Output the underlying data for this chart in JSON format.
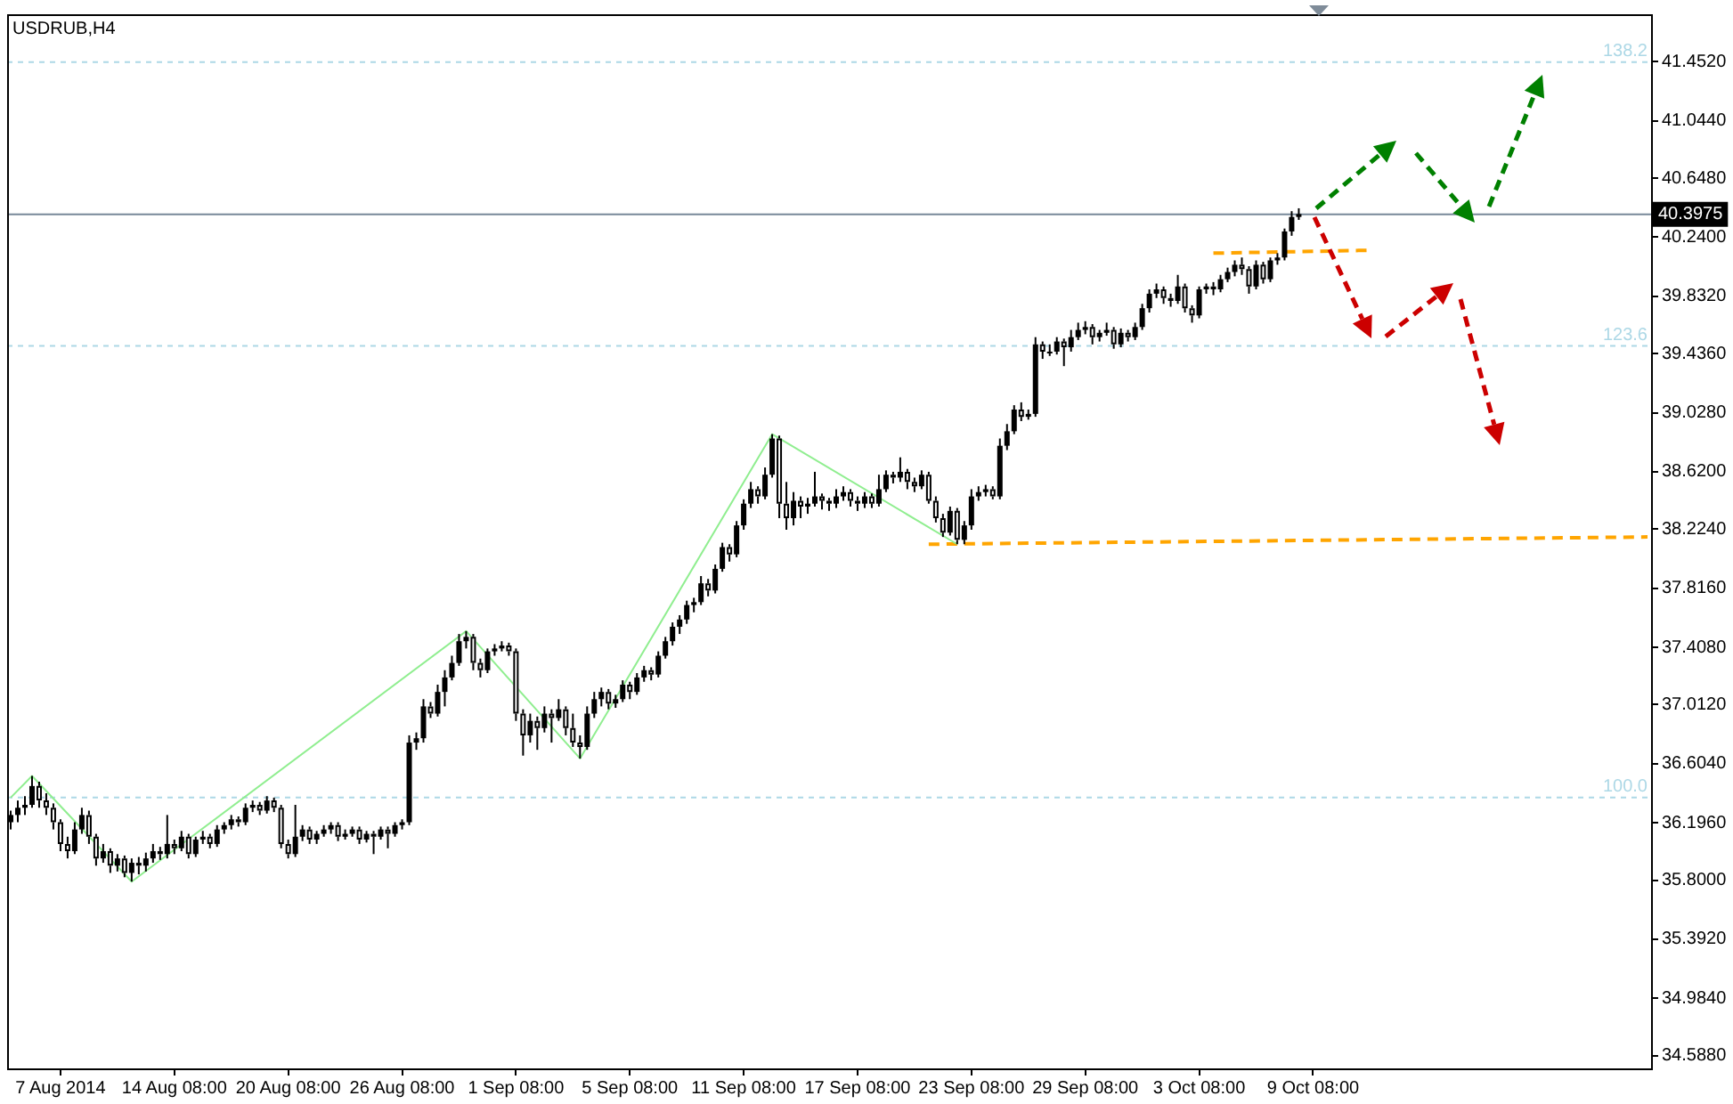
{
  "chart_data": {
    "type": "candlestick",
    "title": "USDRUB,H4",
    "color": "#000000",
    "categories": [
      null,
      null,
      null,
      null,
      null,
      null,
      null,
      "7 Aug 2014",
      null,
      null,
      null,
      null,
      null,
      null,
      null,
      null,
      null,
      null,
      null,
      null,
      null,
      null,
      null,
      "14 Aug 08:00",
      null,
      null,
      null,
      null,
      null,
      null,
      null,
      null,
      null,
      null,
      null,
      null,
      null,
      null,
      null,
      "20 Aug 08:00",
      null,
      null,
      null,
      null,
      null,
      null,
      null,
      null,
      null,
      null,
      null,
      null,
      null,
      null,
      null,
      "26 Aug 08:00",
      null,
      null,
      null,
      null,
      null,
      null,
      null,
      null,
      null,
      null,
      null,
      null,
      null,
      null,
      null,
      "1 Sep 08:00",
      null,
      null,
      null,
      null,
      null,
      null,
      null,
      null,
      null,
      null,
      null,
      null,
      null,
      null,
      null,
      "5 Sep 08:00",
      null,
      null,
      null,
      null,
      null,
      null,
      null,
      null,
      null,
      null,
      null,
      null,
      null,
      null,
      null,
      "11 Sep 08:00",
      null,
      null,
      null,
      null,
      null,
      null,
      null,
      null,
      null,
      null,
      null,
      null,
      null,
      null,
      null,
      "17 Sep 08:00",
      null,
      null,
      null,
      null,
      null,
      null,
      null,
      null,
      null,
      null,
      null,
      null,
      null,
      null,
      null,
      "23 Sep 08:00",
      null,
      null,
      null,
      null,
      null,
      null,
      null,
      null,
      null,
      null,
      null,
      null,
      null,
      null,
      null,
      "29 Sep 08:00",
      null,
      null,
      null,
      null,
      null,
      null,
      null,
      null,
      null,
      null,
      null,
      null,
      null,
      null,
      null,
      "3 Oct 08:00",
      null,
      null,
      null,
      null,
      null,
      null,
      null,
      null,
      null,
      null,
      null,
      null,
      null,
      null,
      null,
      "9 Oct 08:00",
      null,
      null,
      null,
      null,
      null,
      null,
      null,
      null,
      null,
      null,
      null,
      null,
      null,
      null,
      null,
      null,
      null,
      null,
      null,
      null,
      null,
      null,
      null,
      null,
      null,
      null,
      null,
      null,
      null,
      null,
      null,
      null,
      null,
      null,
      null,
      null,
      null,
      null,
      null,
      null,
      null,
      null,
      null,
      null,
      null,
      null,
      null
    ],
    "ohlc": [
      [
        36.2,
        36.28,
        36.15,
        36.25
      ],
      [
        36.25,
        36.35,
        36.2,
        36.3
      ],
      [
        36.3,
        36.38,
        36.25,
        36.32
      ],
      [
        36.32,
        36.52,
        36.3,
        36.45
      ],
      [
        36.45,
        36.48,
        36.3,
        36.35
      ],
      [
        36.35,
        36.4,
        36.25,
        36.3
      ],
      [
        36.3,
        36.33,
        36.15,
        36.2
      ],
      [
        36.2,
        36.22,
        36.0,
        36.05
      ],
      [
        36.05,
        36.1,
        35.95,
        36.0
      ],
      [
        36.0,
        36.2,
        35.98,
        36.15
      ],
      [
        36.15,
        36.3,
        36.12,
        36.25
      ],
      [
        36.25,
        36.28,
        36.05,
        36.1
      ],
      [
        36.1,
        36.12,
        35.9,
        35.95
      ],
      [
        35.95,
        36.05,
        35.92,
        36.0
      ],
      [
        36.0,
        36.02,
        35.85,
        35.9
      ],
      [
        35.9,
        35.98,
        35.86,
        35.95
      ],
      [
        35.95,
        35.97,
        35.82,
        35.85
      ],
      [
        35.85,
        35.95,
        35.79,
        35.92
      ],
      [
        35.92,
        35.96,
        35.84,
        35.9
      ],
      [
        35.9,
        35.99,
        35.86,
        35.95
      ],
      [
        35.95,
        36.05,
        35.92,
        36.0
      ],
      [
        36.0,
        36.03,
        35.94,
        35.98
      ],
      [
        35.98,
        36.25,
        35.95,
        36.05
      ],
      [
        36.05,
        36.08,
        35.98,
        36.02
      ],
      [
        36.02,
        36.14,
        36.0,
        36.1
      ],
      [
        36.1,
        36.12,
        35.95,
        35.98
      ],
      [
        35.98,
        36.1,
        35.96,
        36.08
      ],
      [
        36.08,
        36.14,
        36.05,
        36.1
      ],
      [
        36.1,
        36.12,
        36.02,
        36.05
      ],
      [
        36.05,
        36.18,
        36.03,
        36.15
      ],
      [
        36.15,
        36.2,
        36.12,
        36.18
      ],
      [
        36.18,
        36.25,
        36.15,
        36.22
      ],
      [
        36.22,
        36.24,
        36.17,
        36.2
      ],
      [
        36.2,
        36.33,
        36.18,
        36.3
      ],
      [
        36.3,
        36.35,
        36.27,
        36.32
      ],
      [
        36.32,
        36.34,
        36.25,
        36.28
      ],
      [
        36.28,
        36.38,
        36.26,
        36.35
      ],
      [
        36.35,
        36.37,
        36.27,
        36.3
      ],
      [
        36.3,
        36.32,
        36.02,
        36.05
      ],
      [
        36.05,
        36.08,
        35.95,
        35.98
      ],
      [
        35.98,
        36.32,
        35.96,
        36.1
      ],
      [
        36.1,
        36.18,
        36.07,
        36.15
      ],
      [
        36.15,
        36.17,
        36.05,
        36.08
      ],
      [
        36.08,
        36.14,
        36.05,
        36.12
      ],
      [
        36.12,
        36.18,
        36.1,
        36.15
      ],
      [
        36.15,
        36.2,
        36.12,
        36.18
      ],
      [
        36.18,
        36.2,
        36.07,
        36.1
      ],
      [
        36.1,
        36.15,
        36.08,
        36.12
      ],
      [
        36.12,
        36.17,
        36.1,
        36.15
      ],
      [
        36.15,
        36.17,
        36.05,
        36.08
      ],
      [
        36.08,
        36.14,
        36.06,
        36.12
      ],
      [
        36.12,
        36.14,
        35.98,
        36.1
      ],
      [
        36.1,
        36.17,
        36.08,
        36.15
      ],
      [
        36.15,
        36.17,
        36.02,
        36.12
      ],
      [
        36.12,
        36.2,
        36.1,
        36.18
      ],
      [
        36.18,
        36.22,
        36.15,
        36.2
      ],
      [
        36.2,
        36.8,
        36.18,
        36.75
      ],
      [
        36.75,
        36.82,
        36.7,
        36.78
      ],
      [
        36.78,
        37.05,
        36.75,
        37.0
      ],
      [
        37.0,
        37.03,
        36.92,
        36.95
      ],
      [
        36.95,
        37.15,
        36.93,
        37.1
      ],
      [
        37.1,
        37.25,
        37.0,
        37.2
      ],
      [
        37.2,
        37.35,
        37.18,
        37.3
      ],
      [
        37.3,
        37.5,
        37.28,
        37.45
      ],
      [
        37.45,
        37.52,
        37.4,
        37.48
      ],
      [
        37.48,
        37.5,
        37.25,
        37.3
      ],
      [
        37.3,
        37.33,
        37.2,
        37.25
      ],
      [
        37.25,
        37.4,
        37.23,
        37.38
      ],
      [
        37.38,
        37.43,
        37.35,
        37.4
      ],
      [
        37.4,
        37.45,
        37.38,
        37.42
      ],
      [
        37.42,
        37.44,
        37.35,
        37.38
      ],
      [
        37.38,
        37.4,
        36.9,
        36.95
      ],
      [
        36.95,
        36.98,
        36.66,
        36.8
      ],
      [
        36.8,
        36.95,
        36.75,
        36.9
      ],
      [
        36.9,
        36.93,
        36.7,
        36.85
      ],
      [
        36.85,
        37.0,
        36.82,
        36.95
      ],
      [
        36.95,
        36.98,
        36.75,
        36.92
      ],
      [
        36.92,
        37.05,
        36.9,
        36.98
      ],
      [
        36.98,
        37.0,
        36.8,
        36.85
      ],
      [
        36.85,
        36.95,
        36.72,
        36.75
      ],
      [
        36.75,
        36.8,
        36.64,
        36.72
      ],
      [
        36.72,
        37.0,
        36.7,
        36.95
      ],
      [
        36.95,
        37.1,
        36.92,
        37.05
      ],
      [
        37.05,
        37.13,
        37.0,
        37.1
      ],
      [
        37.1,
        37.12,
        36.98,
        37.02
      ],
      [
        37.02,
        37.08,
        36.99,
        37.05
      ],
      [
        37.05,
        37.18,
        37.03,
        37.15
      ],
      [
        37.15,
        37.17,
        37.05,
        37.1
      ],
      [
        37.1,
        37.23,
        37.08,
        37.2
      ],
      [
        37.2,
        37.28,
        37.17,
        37.25
      ],
      [
        37.25,
        37.27,
        37.18,
        37.22
      ],
      [
        37.22,
        37.38,
        37.2,
        37.35
      ],
      [
        37.35,
        37.48,
        37.33,
        37.45
      ],
      [
        37.45,
        37.58,
        37.42,
        37.55
      ],
      [
        37.55,
        37.63,
        37.5,
        37.6
      ],
      [
        37.6,
        37.73,
        37.57,
        37.7
      ],
      [
        37.7,
        37.75,
        37.65,
        37.72
      ],
      [
        37.72,
        37.9,
        37.7,
        37.85
      ],
      [
        37.85,
        37.88,
        37.76,
        37.8
      ],
      [
        37.8,
        37.98,
        37.78,
        37.95
      ],
      [
        37.95,
        38.13,
        37.93,
        38.1
      ],
      [
        38.1,
        38.12,
        38.0,
        38.05
      ],
      [
        38.05,
        38.28,
        38.03,
        38.25
      ],
      [
        38.25,
        38.43,
        38.22,
        38.4
      ],
      [
        38.4,
        38.55,
        38.37,
        38.5
      ],
      [
        38.5,
        38.52,
        38.4,
        38.45
      ],
      [
        38.45,
        38.65,
        38.43,
        38.6
      ],
      [
        38.6,
        38.88,
        38.58,
        38.85
      ],
      [
        38.85,
        38.87,
        38.3,
        38.4
      ],
      [
        38.4,
        38.55,
        38.22,
        38.3
      ],
      [
        38.3,
        38.48,
        38.25,
        38.42
      ],
      [
        38.42,
        38.45,
        38.3,
        38.38
      ],
      [
        38.38,
        38.44,
        38.33,
        38.4
      ],
      [
        38.4,
        38.62,
        38.38,
        38.45
      ],
      [
        38.45,
        38.47,
        38.36,
        38.42
      ],
      [
        38.42,
        38.44,
        38.35,
        38.4
      ],
      [
        38.4,
        38.5,
        38.37,
        38.45
      ],
      [
        38.45,
        38.52,
        38.42,
        38.48
      ],
      [
        38.48,
        38.5,
        38.38,
        38.42
      ],
      [
        38.42,
        38.45,
        38.35,
        38.4
      ],
      [
        38.4,
        38.48,
        38.37,
        38.45
      ],
      [
        38.45,
        38.47,
        38.37,
        38.4
      ],
      [
        38.4,
        38.6,
        38.38,
        38.5
      ],
      [
        38.5,
        38.63,
        38.48,
        38.6
      ],
      [
        38.6,
        38.62,
        38.54,
        38.58
      ],
      [
        38.58,
        38.72,
        38.55,
        38.62
      ],
      [
        38.62,
        38.64,
        38.5,
        38.55
      ],
      [
        38.55,
        38.58,
        38.48,
        38.52
      ],
      [
        38.52,
        38.63,
        38.5,
        38.6
      ],
      [
        38.6,
        38.62,
        38.4,
        38.42
      ],
      [
        38.42,
        38.45,
        38.27,
        38.3
      ],
      [
        38.3,
        38.33,
        38.17,
        38.2
      ],
      [
        38.2,
        38.38,
        38.18,
        38.35
      ],
      [
        38.35,
        38.37,
        38.12,
        38.15
      ],
      [
        38.15,
        38.28,
        38.12,
        38.25
      ],
      [
        38.25,
        38.5,
        38.22,
        38.45
      ],
      [
        38.45,
        38.52,
        38.42,
        38.48
      ],
      [
        38.48,
        38.53,
        38.45,
        38.5
      ],
      [
        38.5,
        38.52,
        38.43,
        38.45
      ],
      [
        38.45,
        38.85,
        38.43,
        38.8
      ],
      [
        38.8,
        38.95,
        38.77,
        38.9
      ],
      [
        38.9,
        39.08,
        38.88,
        39.05
      ],
      [
        39.05,
        39.1,
        38.97,
        39.0
      ],
      [
        39.0,
        39.05,
        38.98,
        39.02
      ],
      [
        39.02,
        39.55,
        39.0,
        39.5
      ],
      [
        39.5,
        39.52,
        39.4,
        39.45
      ],
      [
        39.45,
        39.5,
        39.42,
        39.45
      ],
      [
        39.45,
        39.55,
        39.43,
        39.52
      ],
      [
        39.52,
        39.54,
        39.35,
        39.48
      ],
      [
        39.48,
        39.6,
        39.45,
        39.55
      ],
      [
        39.55,
        39.65,
        39.53,
        39.6
      ],
      [
        39.6,
        39.66,
        39.57,
        39.62
      ],
      [
        39.62,
        39.64,
        39.5,
        39.55
      ],
      [
        39.55,
        39.6,
        39.52,
        39.58
      ],
      [
        39.58,
        39.65,
        39.56,
        39.6
      ],
      [
        39.6,
        39.62,
        39.47,
        39.5
      ],
      [
        39.5,
        39.61,
        39.48,
        39.58
      ],
      [
        39.58,
        39.6,
        39.52,
        39.55
      ],
      [
        39.55,
        39.65,
        39.53,
        39.62
      ],
      [
        39.62,
        39.78,
        39.6,
        39.75
      ],
      [
        39.75,
        39.88,
        39.72,
        39.85
      ],
      [
        39.85,
        39.92,
        39.82,
        39.88
      ],
      [
        39.88,
        39.9,
        39.78,
        39.82
      ],
      [
        39.82,
        39.85,
        39.76,
        39.8
      ],
      [
        39.8,
        39.98,
        39.78,
        39.9
      ],
      [
        39.9,
        39.92,
        39.72,
        39.75
      ],
      [
        39.75,
        39.77,
        39.65,
        39.7
      ],
      [
        39.7,
        39.9,
        39.68,
        39.88
      ],
      [
        39.88,
        39.92,
        39.85,
        39.9
      ],
      [
        39.9,
        39.93,
        39.84,
        39.88
      ],
      [
        39.88,
        39.98,
        39.86,
        39.95
      ],
      [
        39.95,
        40.03,
        39.93,
        40.0
      ],
      [
        40.0,
        40.08,
        39.97,
        40.05
      ],
      [
        40.05,
        40.1,
        39.98,
        40.02
      ],
      [
        40.02,
        40.04,
        39.85,
        39.9
      ],
      [
        39.9,
        40.08,
        39.88,
        40.05
      ],
      [
        40.05,
        40.07,
        39.92,
        39.95
      ],
      [
        39.95,
        40.1,
        39.93,
        40.08
      ],
      [
        40.08,
        40.13,
        40.05,
        40.1
      ],
      [
        40.1,
        40.3,
        40.08,
        40.28
      ],
      [
        40.28,
        40.42,
        40.25,
        40.38
      ],
      [
        40.38,
        40.44,
        40.36,
        40.4
      ],
      null,
      null,
      null,
      null,
      null,
      null,
      null,
      null,
      null,
      null,
      null,
      null,
      null,
      null,
      null,
      null,
      null,
      null,
      null,
      null,
      null,
      null,
      null,
      null,
      null,
      null,
      null,
      null,
      null,
      null,
      null,
      null,
      null,
      null,
      null,
      null,
      null,
      null,
      null,
      null,
      null,
      null,
      null,
      null,
      null,
      null,
      null,
      null,
      null
    ],
    "colors": [
      "#000000",
      "#000000",
      "#000000",
      "#000000",
      "#ffffff",
      "#ffffff",
      "#ffffff",
      "#ffffff",
      "#ffffff",
      "#000000",
      "#000000",
      "#ffffff",
      "#ffffff",
      "#000000",
      "#ffffff",
      "#000000",
      "#ffffff",
      "#000000",
      "#ffffff",
      "#000000",
      "#000000",
      "#ffffff",
      "#000000",
      "#ffffff",
      "#000000",
      "#ffffff",
      "#000000",
      "#000000",
      "#ffffff",
      "#000000",
      "#000000",
      "#000000",
      "#ffffff",
      "#000000",
      "#000000",
      "#ffffff",
      "#000000",
      "#ffffff",
      "#ffffff",
      "#ffffff",
      "#000000",
      "#000000",
      "#ffffff",
      "#000000",
      "#000000",
      "#000000",
      "#ffffff",
      "#000000",
      "#000000",
      "#ffffff",
      "#000000",
      "#ffffff",
      "#000000",
      "#ffffff",
      "#000000",
      "#000000",
      "#000000",
      "#000000",
      "#000000",
      "#ffffff",
      "#000000",
      "#000000",
      "#000000",
      "#000000",
      "#000000",
      "#ffffff",
      "#ffffff",
      "#000000",
      "#000000",
      "#000000",
      "#ffffff",
      "#ffffff",
      "#ffffff",
      "#000000",
      "#ffffff",
      "#000000",
      "#ffffff",
      "#000000",
      "#ffffff",
      "#ffffff",
      "#ffffff",
      "#000000",
      "#000000",
      "#000000",
      "#ffffff",
      "#000000",
      "#000000",
      "#ffffff",
      "#000000",
      "#000000",
      "#ffffff",
      "#000000",
      "#000000",
      "#000000",
      "#000000",
      "#000000",
      "#000000",
      "#000000",
      "#ffffff",
      "#000000",
      "#000000",
      "#ffffff",
      "#000000",
      "#000000",
      "#000000",
      "#ffffff",
      "#000000",
      "#000000",
      "#ffffff",
      "#ffffff",
      "#000000",
      "#ffffff",
      "#000000",
      "#000000",
      "#ffffff",
      "#ffffff",
      "#000000",
      "#000000",
      "#ffffff",
      "#ffffff",
      "#000000",
      "#ffffff",
      "#000000",
      "#000000",
      "#ffffff",
      "#000000",
      "#ffffff",
      "#ffffff",
      "#000000",
      "#ffffff",
      "#ffffff",
      "#ffffff",
      "#000000",
      "#ffffff",
      "#000000",
      "#000000",
      "#000000",
      "#000000",
      "#ffffff",
      "#000000",
      "#000000",
      "#000000",
      "#ffffff",
      "#000000",
      "#000000",
      "#ffffff",
      "#000000",
      "#000000",
      "#ffffff",
      "#000000",
      "#000000",
      "#000000",
      "#ffffff",
      "#000000",
      "#000000",
      "#ffffff",
      "#000000",
      "#ffffff",
      "#000000",
      "#000000",
      "#000000",
      "#000000",
      "#ffffff",
      "#ffffff",
      "#000000",
      "#ffffff",
      "#ffffff",
      "#000000",
      "#000000",
      "#ffffff",
      "#000000",
      "#000000",
      "#000000",
      "#ffffff",
      "#ffffff",
      "#000000",
      "#ffffff",
      "#000000",
      "#000000",
      "#000000",
      "#000000",
      "#000000",
      null,
      null,
      null,
      null,
      null,
      null,
      null,
      null,
      null,
      null,
      null,
      null,
      null,
      null,
      null,
      null,
      null,
      null,
      null,
      null,
      null,
      null,
      null,
      null,
      null,
      null,
      null,
      null,
      null,
      null,
      null,
      null,
      null,
      null,
      null,
      null,
      null,
      null,
      null,
      null,
      null,
      null,
      null,
      null,
      null,
      null,
      null,
      null,
      null
    ],
    "series": [
      {
        "type": "line",
        "color": "#90ee90",
        "line_style": "solid",
        "values": [
          36.37,
          null,
          null,
          36.52,
          null,
          null,
          null,
          null,
          null,
          null,
          null,
          null,
          null,
          null,
          null,
          null,
          null,
          35.79,
          null,
          null,
          null,
          null,
          null,
          null,
          null,
          null,
          null,
          null,
          null,
          null,
          null,
          null,
          null,
          null,
          null,
          null,
          null,
          null,
          null,
          null,
          null,
          null,
          null,
          null,
          null,
          null,
          null,
          null,
          null,
          null,
          null,
          null,
          null,
          null,
          null,
          null,
          null,
          null,
          null,
          null,
          null,
          null,
          null,
          null,
          37.52,
          null,
          null,
          null,
          null,
          null,
          null,
          null,
          null,
          null,
          null,
          null,
          null,
          null,
          null,
          null,
          36.64,
          null,
          null,
          null,
          null,
          null,
          null,
          null,
          null,
          null,
          null,
          null,
          null,
          null,
          null,
          null,
          null,
          null,
          null,
          null,
          null,
          null,
          null,
          null,
          null,
          null,
          null,
          38.88,
          null,
          null,
          null,
          null,
          null,
          null,
          null,
          null,
          null,
          null,
          null,
          null,
          null,
          null,
          null,
          null,
          null,
          null,
          null,
          null,
          null,
          null,
          null,
          null,
          null,
          38.12,
          null,
          null,
          null,
          null,
          null,
          null,
          null,
          null,
          null,
          null,
          null,
          null,
          null,
          null,
          null,
          null,
          null,
          null,
          null,
          null,
          null,
          null,
          null,
          null,
          null,
          null,
          null,
          null,
          null,
          null,
          null,
          null,
          null,
          null,
          null,
          null,
          null,
          null,
          null,
          null,
          null,
          null,
          null,
          null,
          null,
          null,
          null,
          null,
          null,
          null,
          null,
          null,
          null,
          null,
          null,
          null,
          null,
          null,
          null,
          null,
          null,
          null,
          null,
          null,
          null,
          null,
          null,
          null,
          null,
          null,
          null,
          null,
          null,
          null,
          null,
          null,
          null,
          null,
          null,
          null,
          null,
          null,
          null,
          null,
          null,
          null,
          null,
          null,
          null,
          null,
          null,
          null,
          null,
          null,
          null,
          null,
          null
        ]
      },
      {
        "type": "line",
        "color": "#ffa500",
        "line_style": "dashed",
        "values": [
          null,
          null,
          null,
          null,
          null,
          null,
          null,
          null,
          null,
          null,
          null,
          null,
          null,
          null,
          null,
          null,
          null,
          null,
          null,
          null,
          null,
          null,
          null,
          null,
          null,
          null,
          null,
          null,
          null,
          null,
          null,
          null,
          null,
          null,
          null,
          null,
          null,
          null,
          null,
          null,
          null,
          null,
          null,
          null,
          null,
          null,
          null,
          null,
          null,
          null,
          null,
          null,
          null,
          null,
          null,
          null,
          null,
          null,
          null,
          null,
          null,
          null,
          null,
          null,
          null,
          null,
          null,
          null,
          null,
          null,
          null,
          null,
          null,
          null,
          null,
          null,
          null,
          null,
          null,
          null,
          null,
          null,
          null,
          null,
          null,
          null,
          null,
          null,
          null,
          null,
          null,
          null,
          null,
          null,
          null,
          null,
          null,
          null,
          null,
          null,
          null,
          null,
          null,
          null,
          null,
          null,
          null,
          null,
          null,
          null,
          null,
          null,
          null,
          null,
          null,
          null,
          null,
          null,
          null,
          null,
          null,
          null,
          null,
          null,
          null,
          null,
          null,
          null,
          null,
          38.12,
          null,
          null,
          null,
          null,
          null,
          null,
          null,
          null,
          null,
          null,
          null,
          null,
          null,
          null,
          null,
          null,
          null,
          null,
          null,
          null,
          null,
          null,
          null,
          null,
          null,
          null,
          null,
          null,
          null,
          null,
          null,
          null,
          null,
          null,
          null,
          null,
          null,
          null,
          null,
          null,
          null,
          null,
          null,
          null,
          null,
          null,
          null,
          null,
          null,
          null,
          null,
          null,
          null,
          null,
          null,
          null,
          null,
          null,
          null,
          null,
          null,
          null,
          null,
          null,
          null,
          null,
          null,
          null,
          null,
          null,
          null,
          null,
          null,
          null,
          null,
          null,
          null,
          null,
          null,
          null,
          null,
          null,
          null,
          null,
          null,
          null,
          null,
          null,
          null,
          null,
          null,
          null,
          null,
          null,
          null,
          null,
          null,
          null,
          null,
          null,
          38.17
        ]
      },
      {
        "type": "line",
        "color": "#ffa500",
        "line_style": "dashed",
        "values": [
          null,
          null,
          null,
          null,
          null,
          null,
          null,
          null,
          null,
          null,
          null,
          null,
          null,
          null,
          null,
          null,
          null,
          null,
          null,
          null,
          null,
          null,
          null,
          null,
          null,
          null,
          null,
          null,
          null,
          null,
          null,
          null,
          null,
          null,
          null,
          null,
          null,
          null,
          null,
          null,
          null,
          null,
          null,
          null,
          null,
          null,
          null,
          null,
          null,
          null,
          null,
          null,
          null,
          null,
          null,
          null,
          null,
          null,
          null,
          null,
          null,
          null,
          null,
          null,
          null,
          null,
          null,
          null,
          null,
          null,
          null,
          null,
          null,
          null,
          null,
          null,
          null,
          null,
          null,
          null,
          null,
          null,
          null,
          null,
          null,
          null,
          null,
          null,
          null,
          null,
          null,
          null,
          null,
          null,
          null,
          null,
          null,
          null,
          null,
          null,
          null,
          null,
          null,
          null,
          null,
          null,
          null,
          null,
          null,
          null,
          null,
          null,
          null,
          null,
          null,
          null,
          null,
          null,
          null,
          null,
          null,
          null,
          null,
          null,
          null,
          null,
          null,
          null,
          null,
          null,
          null,
          null,
          null,
          null,
          null,
          null,
          null,
          null,
          null,
          null,
          null,
          null,
          null,
          null,
          null,
          null,
          null,
          null,
          null,
          null,
          null,
          null,
          null,
          null,
          null,
          null,
          null,
          null,
          null,
          null,
          null,
          null,
          null,
          null,
          null,
          null,
          null,
          null,
          null,
          40.13,
          null,
          null,
          null,
          null,
          null,
          null,
          null,
          null,
          null,
          null,
          null,
          null,
          null,
          null,
          null,
          null,
          null,
          null,
          null,
          null,
          null,
          40.15,
          null,
          null,
          null,
          null,
          null,
          null,
          null,
          null,
          null,
          null,
          null,
          null,
          null,
          null,
          null,
          null,
          null,
          null,
          null,
          null,
          null,
          null,
          null,
          null,
          null,
          null,
          null,
          null,
          null,
          null,
          null,
          null,
          null,
          null,
          null,
          null,
          null,
          null,
          null
        ]
      }
    ],
    "ylim": [
      34.5,
      41.78
    ],
    "yticks": [
      {
        "value": 41.452,
        "label": "41.4520"
      },
      {
        "value": 41.044,
        "label": "41.0440"
      },
      {
        "value": 40.648,
        "label": "40.6480"
      },
      {
        "value": 40.24,
        "label": "40.2400"
      },
      {
        "value": 39.832,
        "label": "39.8320"
      },
      {
        "value": 39.436,
        "label": "39.4360"
      },
      {
        "value": 39.028,
        "label": "39.0280"
      },
      {
        "value": 38.62,
        "label": "38.6200"
      },
      {
        "value": 38.224,
        "label": "38.2240"
      },
      {
        "value": 37.816,
        "label": "37.8160"
      },
      {
        "value": 37.408,
        "label": "37.4080"
      },
      {
        "value": 37.012,
        "label": "37.0120"
      },
      {
        "value": 36.604,
        "label": "36.6040"
      },
      {
        "value": 36.196,
        "label": "36.1960"
      },
      {
        "value": 35.8,
        "label": "35.8000"
      },
      {
        "value": 35.392,
        "label": "35.3920"
      },
      {
        "value": 34.984,
        "label": "34.9840"
      },
      {
        "value": 34.588,
        "label": "34.5880"
      }
    ],
    "ref_lines": [
      {
        "axis": "y",
        "value": 41.45,
        "color": "#add8e6",
        "line_style": "dashed"
      },
      {
        "axis": "y",
        "value": 39.49,
        "color": "#add8e6",
        "line_style": "dashed"
      },
      {
        "axis": "y",
        "value": 36.37,
        "color": "#add8e6",
        "line_style": "dashed"
      },
      {
        "axis": "y",
        "value": 40.3975,
        "label": "40.3975",
        "color": "#778899",
        "line_style": "solid"
      }
    ],
    "annotations": [
      {
        "text": "138.2",
        "y": 41.45
      },
      {
        "text": "123.6",
        "y": 39.49
      },
      {
        "text": "100.0",
        "y": 36.37
      }
    ]
  }
}
